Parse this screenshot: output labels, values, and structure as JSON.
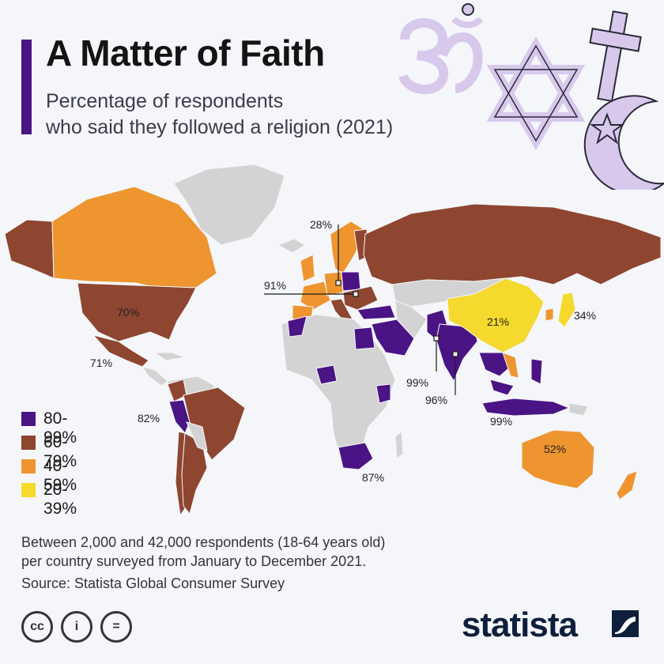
{
  "header": {
    "title": "A Matter of Faith",
    "subtitle_line1": "Percentage of respondents",
    "subtitle_line2": "who said they followed a religion (2021)"
  },
  "decor": {
    "icons": [
      "om-icon",
      "star-of-david-icon",
      "cross-icon",
      "crescent-star-icon"
    ],
    "icon_color": "#d8c9ec"
  },
  "legend": {
    "items": [
      {
        "label": "80-99%",
        "color": "#4b1485"
      },
      {
        "label": "60-79%",
        "color": "#8e4630"
      },
      {
        "label": "40-59%",
        "color": "#ee9530"
      },
      {
        "label": "20-39%",
        "color": "#f5d92c"
      }
    ]
  },
  "map": {
    "other_color": "#d3d3d3",
    "labels": {
      "usa": "70%",
      "mexico": "71%",
      "sweden": "28%",
      "germany": "91%",
      "china": "21%",
      "japan": "34%",
      "pakistan": "99%",
      "india": "96%",
      "indonesia": "99%",
      "peru": "82%",
      "south_africa": "87%",
      "australia": "52%"
    }
  },
  "footer": {
    "note_line1": "Between 2,000 and 42,000 respondents (18-64 years old)",
    "note_line2": "per country surveyed from January to December 2021.",
    "source": "Source: Statista Global Consumer Survey",
    "license_icons": [
      "cc-icon",
      "attribution-icon",
      "no-derivatives-icon"
    ],
    "license_text": [
      "cc",
      "i",
      "="
    ],
    "brand": "statista"
  }
}
